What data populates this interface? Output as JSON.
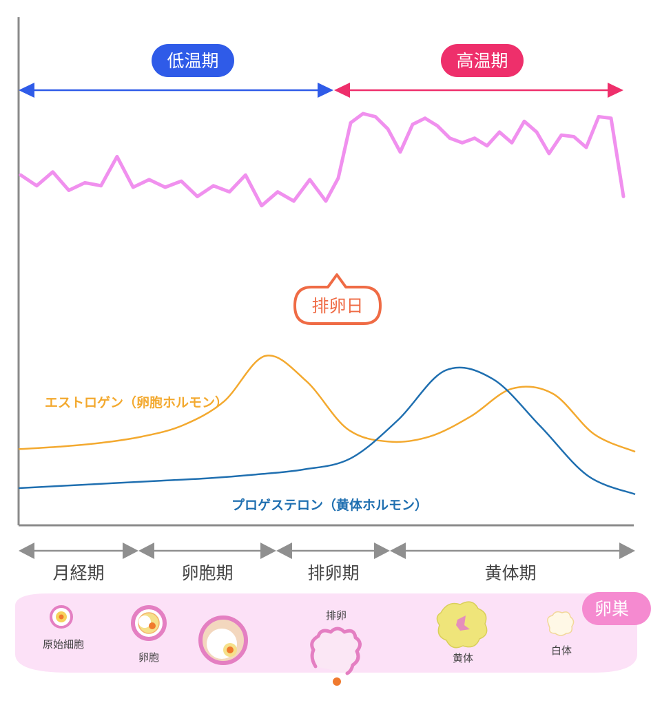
{
  "temperature": {
    "low_label": "低温期",
    "high_label": "高温期",
    "ovulation_day_label": "排卵日",
    "colors": {
      "low": "#2f5be8",
      "high": "#ee2f6b",
      "curve": "#f090ee",
      "callout": "#ef6b45"
    },
    "low_values": [
      0.6,
      0.53,
      0.62,
      0.5,
      0.55,
      0.53,
      0.72,
      0.52,
      0.57,
      0.52,
      0.56,
      0.46,
      0.53,
      0.49,
      0.6,
      0.4,
      0.49,
      0.43,
      0.57,
      0.43
    ],
    "high_values": [
      0.6,
      0.58,
      0.94,
      1.0,
      0.98,
      0.9,
      0.75,
      0.93,
      0.97,
      0.92,
      0.84,
      0.81,
      0.84,
      0.79,
      0.88,
      0.81,
      0.95,
      0.88,
      0.74,
      0.86,
      0.85,
      0.78,
      0.98,
      0.97,
      0.46
    ]
  },
  "hormones": {
    "estrogen_label": "エストロゲン（卵胞ホルモン）",
    "progesterone_label": "プロゲステロン（黄体ホルモン）",
    "colors": {
      "estrogen": "#f3a92f",
      "progesterone": "#1f6fb0"
    },
    "estrogen_values": [
      0.26,
      0.28,
      0.31,
      0.36,
      0.45,
      0.64,
      1.0,
      0.8,
      0.42,
      0.32,
      0.36,
      0.52,
      0.74,
      0.7,
      0.38,
      0.24
    ],
    "progesterone_values": [
      0.05,
      0.07,
      0.09,
      0.11,
      0.13,
      0.16,
      0.2,
      0.29,
      0.6,
      1.0,
      0.93,
      0.55,
      0.15,
      0.0
    ]
  },
  "phases": [
    {
      "label": "月経期"
    },
    {
      "label": "卵胞期"
    },
    {
      "label": "排卵期"
    },
    {
      "label": "黄体期"
    }
  ],
  "ovary": {
    "label": "卵巣",
    "stages": {
      "primordial": "原始細胞",
      "follicle": "卵胞",
      "ovulation": "排卵",
      "corpus_luteum": "黄体",
      "corpus_albicans": "白体"
    },
    "colors": {
      "band": "#fce1f7",
      "badge": "#f58ad0"
    }
  }
}
